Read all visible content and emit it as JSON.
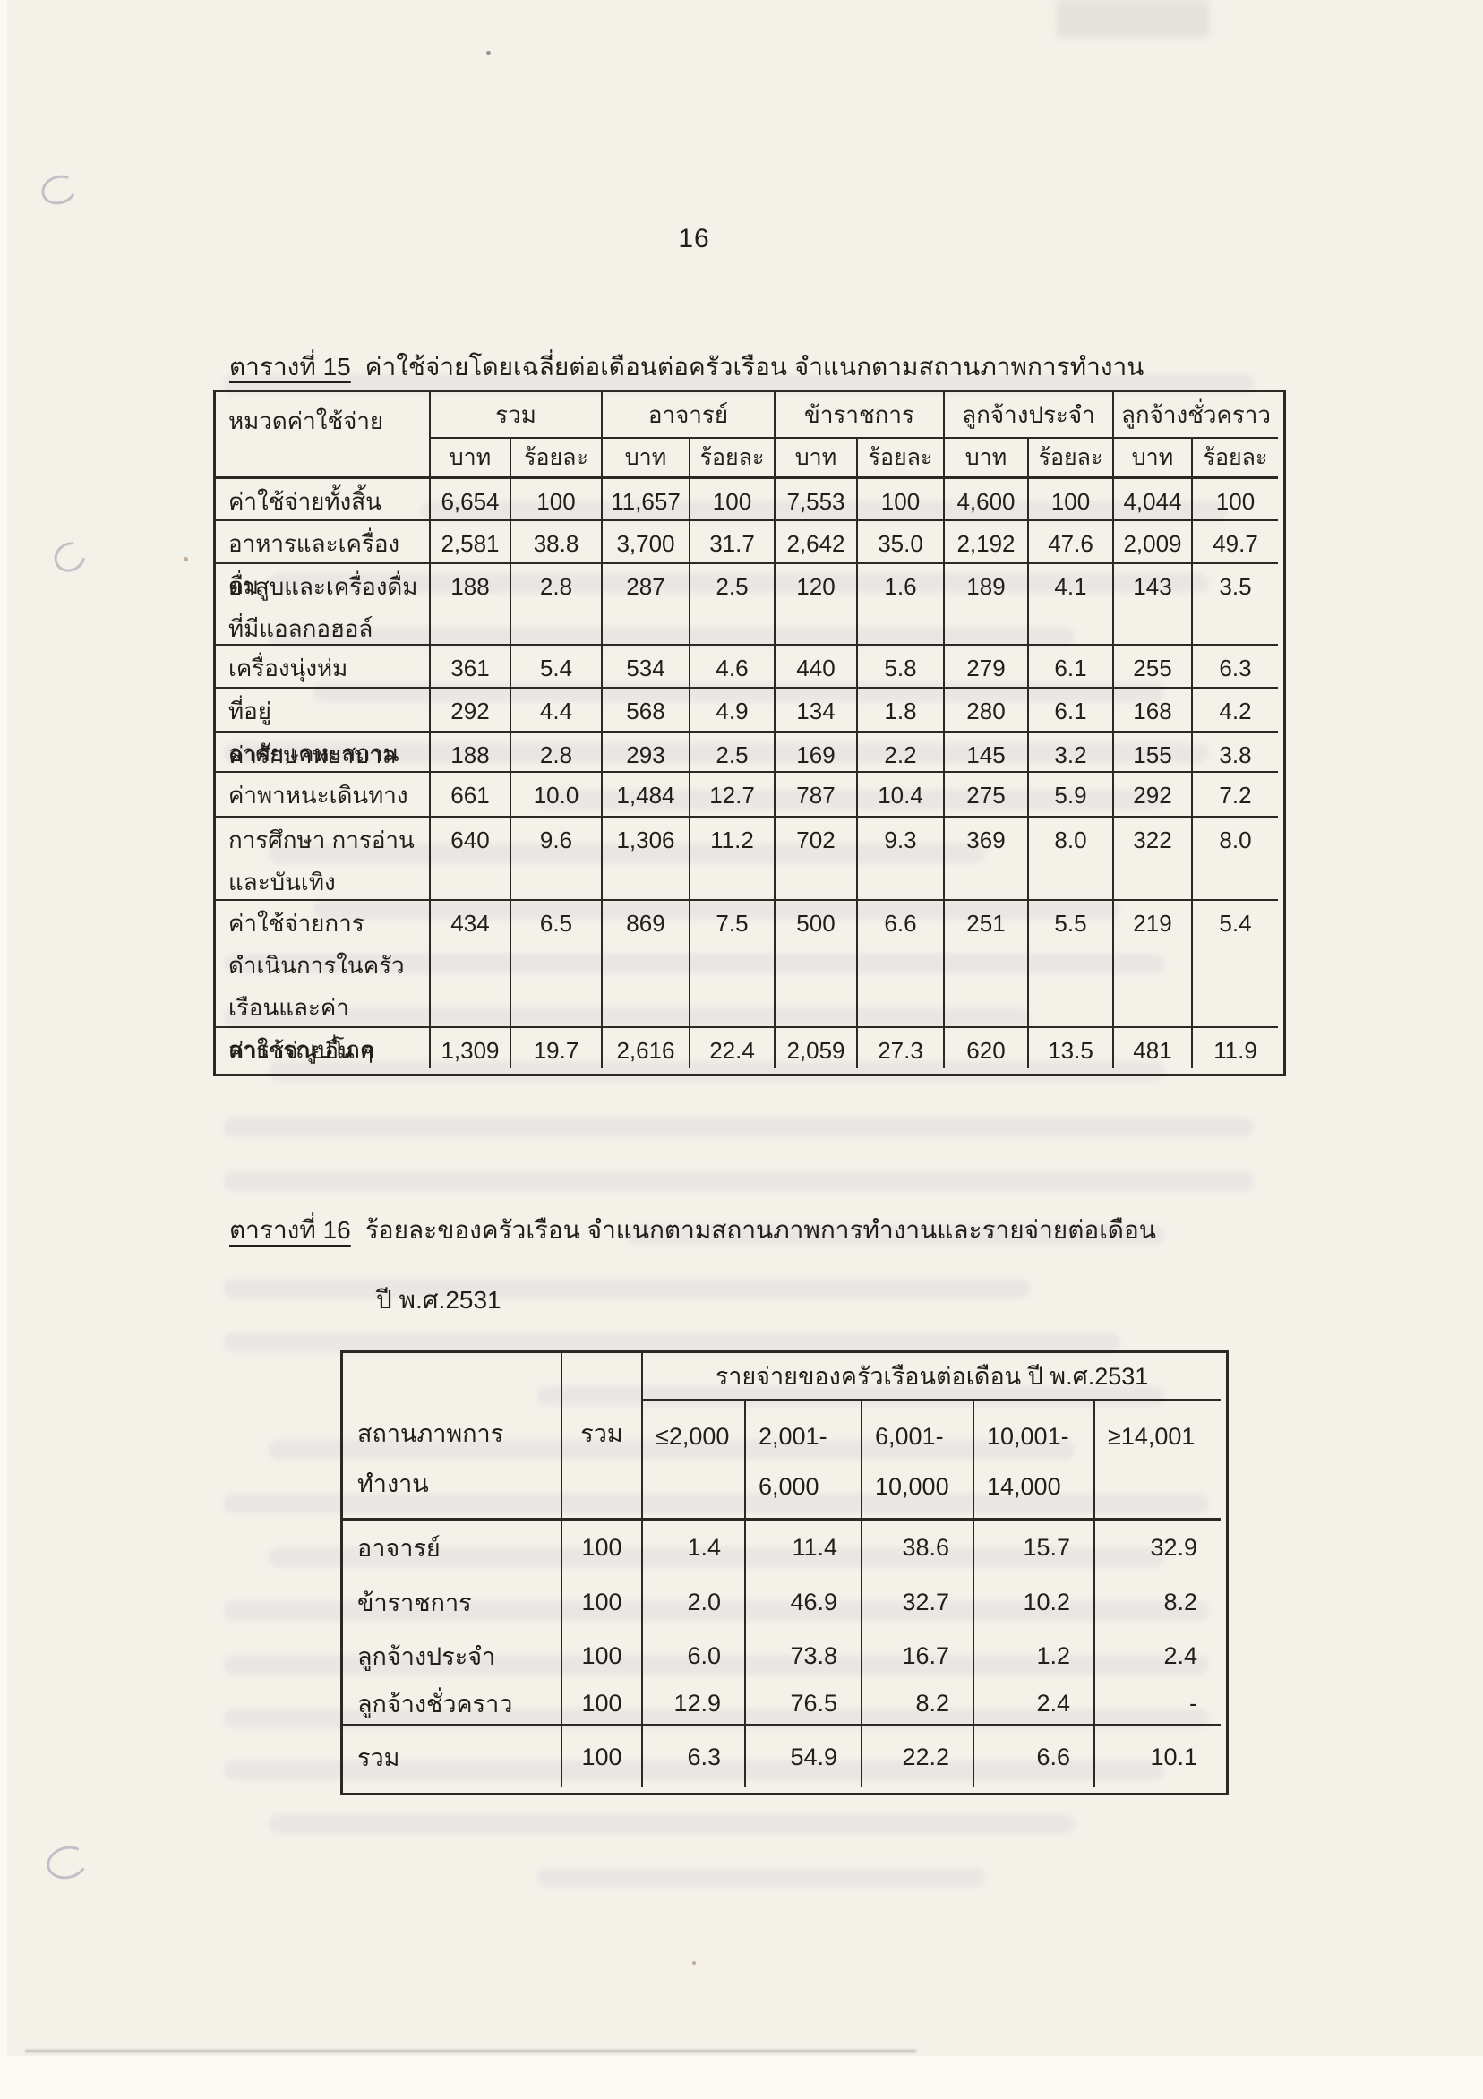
{
  "page": {
    "number": "16"
  },
  "table15": {
    "title_label": "ตารางที่ 15",
    "title_text": "ค่าใช้จ่ายโดยเฉลี่ยต่อเดือนต่อครัวเรือน จำแนกตามสถานภาพการทำงาน",
    "col1_header": "หมวดค่าใช้จ่าย",
    "groups": [
      "รวม",
      "อาจารย์",
      "ข้าราชการ",
      "ลูกจ้างประจำ",
      "ลูกจ้างชั่วคราว"
    ],
    "sub_headers": [
      "บาท",
      "ร้อยละ"
    ],
    "rows": [
      {
        "category": "ค่าใช้จ่ายทั้งสิ้น",
        "values": [
          "6,654",
          "100",
          "11,657",
          "100",
          "7,553",
          "100",
          "4,600",
          "100",
          "4,044",
          "100"
        ]
      },
      {
        "category": "อาหารและเครื่องดื่ม",
        "values": [
          "2,581",
          "38.8",
          "3,700",
          "31.7",
          "2,642",
          "35.0",
          "2,192",
          "47.6",
          "2,009",
          "49.7"
        ]
      },
      {
        "category": "ยาสูบและเครื่องดื่มที่​มีแอลกอฮอล์",
        "values": [
          "188",
          "2.8",
          "287",
          "2.5",
          "120",
          "1.6",
          "189",
          "4.1",
          "143",
          "3.5"
        ]
      },
      {
        "category": "เครื่องนุ่งห่ม",
        "values": [
          "361",
          "5.4",
          "534",
          "4.6",
          "440",
          "5.8",
          "279",
          "6.1",
          "255",
          "6.3"
        ]
      },
      {
        "category": "ที่อยู่อาศัย,เคหะสถาน",
        "values": [
          "292",
          "4.4",
          "568",
          "4.9",
          "134",
          "1.8",
          "280",
          "6.1",
          "168",
          "4.2"
        ]
      },
      {
        "category": "ค่ารักษาพยาบาล",
        "values": [
          "188",
          "2.8",
          "293",
          "2.5",
          "169",
          "2.2",
          "145",
          "3.2",
          "155",
          "3.8"
        ]
      },
      {
        "category": "ค่าพาหนะเดินทาง",
        "values": [
          "661",
          "10.0",
          "1,484",
          "12.7",
          "787",
          "10.4",
          "275",
          "5.9",
          "292",
          "7.2"
        ]
      },
      {
        "category": "การศึกษา การอ่าน และบันเทิง",
        "values": [
          "640",
          "9.6",
          "1,306",
          "11.2",
          "702",
          "9.3",
          "369",
          "8.0",
          "322",
          "8.0"
        ]
      },
      {
        "category": "ค่าใช้จ่ายการดำเนิน​การในครัวเรือนและ​ค่าสาธารณูปโภค",
        "values": [
          "434",
          "6.5",
          "869",
          "7.5",
          "500",
          "6.6",
          "251",
          "5.5",
          "219",
          "5.4"
        ]
      },
      {
        "category": "ค่าใช้จ่ายอื่น ๆ",
        "values": [
          "1,309",
          "19.7",
          "2,616",
          "22.4",
          "2,059",
          "27.3",
          "620",
          "13.5",
          "481",
          "11.9"
        ]
      }
    ]
  },
  "table16": {
    "title_label": "ตารางที่ 16",
    "title_text": "ร้อยละของครัวเรือน จำแนกตามสถานภาพการทำงานและรายจ่ายต่อเดือน",
    "title_line2": "ปี พ.ศ.2531",
    "col1_header_line1": "สถานภาพการ",
    "col1_header_line2": "ทำงาน",
    "total_header": "รวม",
    "span_header": "รายจ่ายของครัวเรือนต่อเดือน ปี พ.ศ.2531",
    "ranges": [
      {
        "line1": "≤2,000",
        "line2": ""
      },
      {
        "line1": "2,001-",
        "line2": "6,000"
      },
      {
        "line1": "6,001-",
        "line2": "10,000"
      },
      {
        "line1": "10,001-",
        "line2": "14,000"
      },
      {
        "line1": "≥14,001",
        "line2": ""
      }
    ],
    "rows": [
      {
        "category": "อาจารย์",
        "values": [
          "100",
          "1.4",
          "11.4",
          "38.6",
          "15.7",
          "32.9"
        ]
      },
      {
        "category": "ข้าราชการ",
        "values": [
          "100",
          "2.0",
          "46.9",
          "32.7",
          "10.2",
          "8.2"
        ]
      },
      {
        "category": "ลูกจ้างประจำ",
        "values": [
          "100",
          "6.0",
          "73.8",
          "16.7",
          "1.2",
          "2.4"
        ]
      },
      {
        "category": "ลูกจ้างชั่วคราว",
        "values": [
          "100",
          "12.9",
          "76.5",
          "8.2",
          "2.4",
          "-"
        ]
      },
      {
        "category": "รวม",
        "values": [
          "100",
          "6.3",
          "54.9",
          "22.2",
          "6.6",
          "10.1"
        ]
      }
    ]
  }
}
